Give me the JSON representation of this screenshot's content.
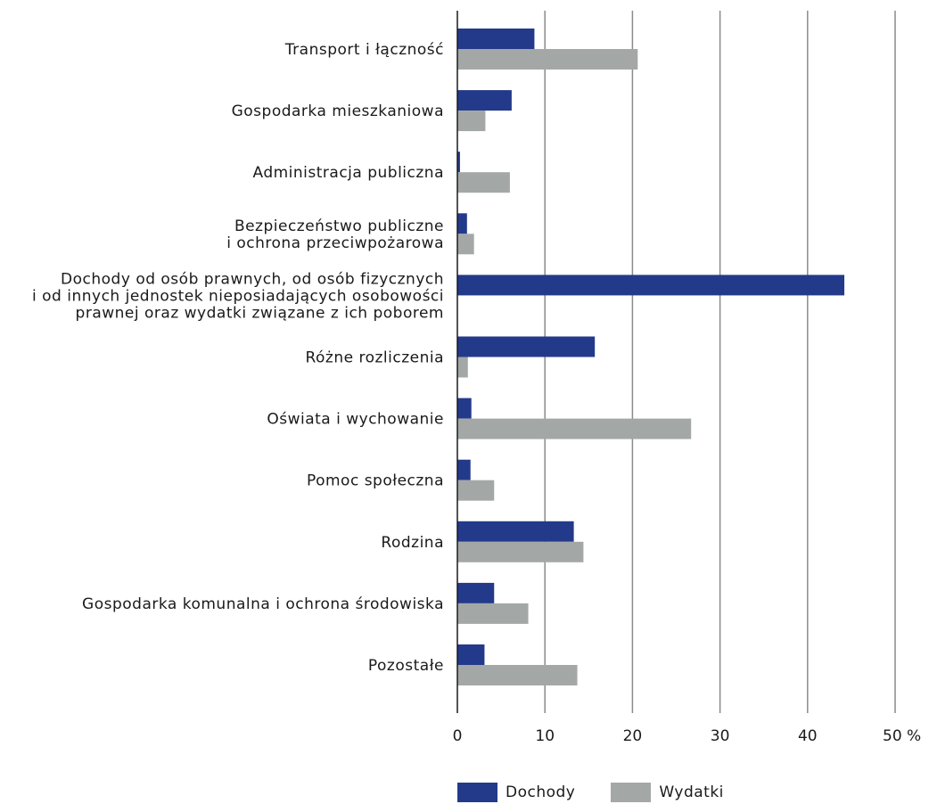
{
  "chart_data": {
    "type": "bar",
    "orientation": "horizontal",
    "categories": [
      [
        "Transport i łączność"
      ],
      [
        "Gospodarka mieszkaniowa"
      ],
      [
        "Administracja publiczna"
      ],
      [
        "Bezpieczeństwo publiczne",
        "i ochrona przeciwpożarowa"
      ],
      [
        "Dochody od osób prawnych, od osób fizycznych",
        "i od innych jednostek nieposiadających osobowości",
        "prawnej oraz wydatki związane z ich poborem"
      ],
      [
        "Różne rozliczenia"
      ],
      [
        "Oświata i wychowanie"
      ],
      [
        "Pomoc społeczna"
      ],
      [
        "Rodzina"
      ],
      [
        "Gospodarka komunalna i ochrona środowiska"
      ],
      [
        "Pozostałe"
      ]
    ],
    "series": [
      {
        "name": "Dochody",
        "color": "#233a8b",
        "values": [
          8.8,
          6.2,
          0.3,
          1.1,
          44.2,
          15.7,
          1.6,
          1.5,
          13.3,
          4.2,
          3.1
        ]
      },
      {
        "name": "Wydatki",
        "color": "#a3a8a6",
        "values": [
          20.6,
          3.2,
          6.0,
          1.9,
          0.0,
          1.2,
          26.7,
          4.2,
          14.4,
          8.1,
          13.7
        ]
      }
    ],
    "xlim": [
      0,
      50
    ],
    "xticks": [
      0,
      10,
      20,
      30,
      40,
      50
    ],
    "xtick_labels": [
      "0",
      "10",
      "20",
      "30",
      "40",
      "50 %"
    ],
    "grid": "vertical",
    "legend_position": "bottom"
  },
  "legend": {
    "items": [
      {
        "label": "Dochody",
        "color": "#233a8b"
      },
      {
        "label": "Wydatki",
        "color": "#a3a8a6"
      }
    ]
  }
}
